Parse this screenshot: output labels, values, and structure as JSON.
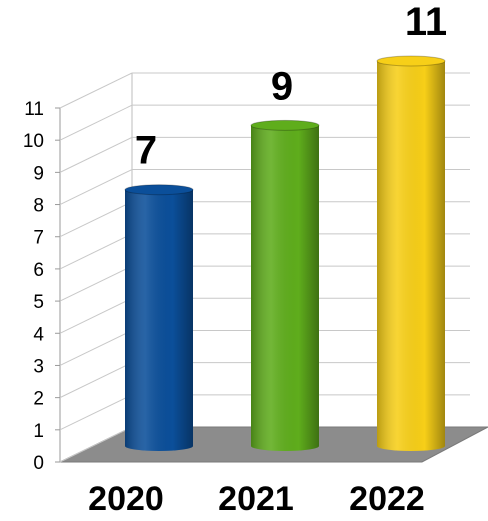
{
  "chart_data": {
    "type": "bar",
    "style": "3d-cylinder",
    "categories": [
      "2020",
      "2021",
      "2022"
    ],
    "values": [
      7,
      9,
      11
    ],
    "data_labels": [
      "7",
      "9",
      "11"
    ],
    "bar_colors": [
      "#0b4f9a",
      "#5fad1c",
      "#f7cf18"
    ],
    "ylim": [
      0,
      11
    ],
    "yticks": [
      "0",
      "1",
      "2",
      "3",
      "4",
      "5",
      "6",
      "7",
      "8",
      "9",
      "10",
      "11"
    ],
    "grid": true,
    "legend": "none",
    "title": "",
    "xlabel": "",
    "ylabel": ""
  }
}
